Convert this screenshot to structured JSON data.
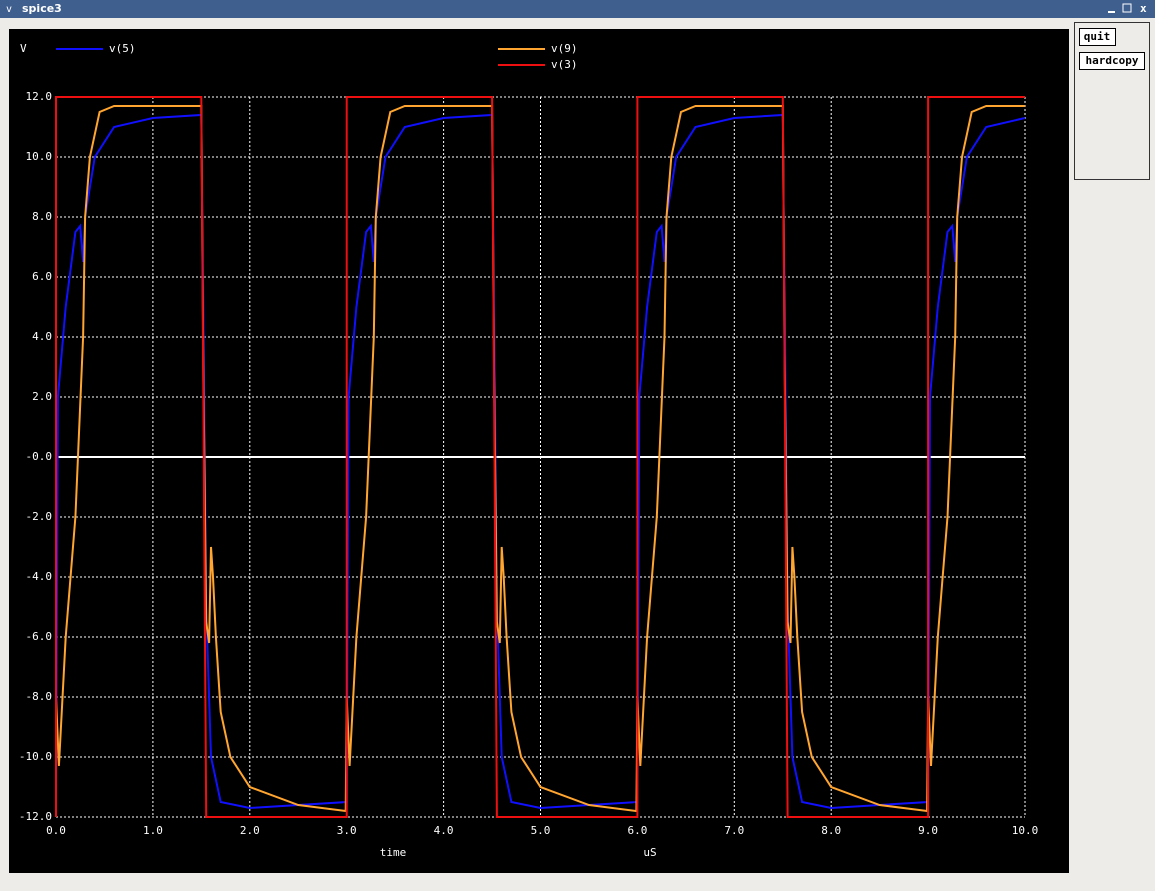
{
  "window": {
    "title": "spice3",
    "buttons": [
      "quit",
      "hardcopy"
    ]
  },
  "chart_data": {
    "type": "line",
    "ylabel": "V",
    "xlabel": "time",
    "xunit": "uS",
    "grid": true,
    "xlim": [
      0,
      10
    ],
    "ylim": [
      -12,
      12
    ],
    "xticks": [
      {
        "value": 0,
        "label": "0.0"
      },
      {
        "value": 1,
        "label": "1.0"
      },
      {
        "value": 2,
        "label": "2.0"
      },
      {
        "value": 3,
        "label": "3.0"
      },
      {
        "value": 4,
        "label": "4.0"
      },
      {
        "value": 5,
        "label": "5.0"
      },
      {
        "value": 6,
        "label": "6.0"
      },
      {
        "value": 7,
        "label": "7.0"
      },
      {
        "value": 8,
        "label": "8.0"
      },
      {
        "value": 9,
        "label": "9.0"
      },
      {
        "value": 10,
        "label": "10.0"
      }
    ],
    "yticks": [
      {
        "value": -12,
        "label": "-12.0"
      },
      {
        "value": -10,
        "label": "-10.0"
      },
      {
        "value": -8,
        "label": "-8.0"
      },
      {
        "value": -6,
        "label": "-6.0"
      },
      {
        "value": -4,
        "label": "-4.0"
      },
      {
        "value": -2,
        "label": "-2.0"
      },
      {
        "value": 0,
        "label": "-0.0"
      },
      {
        "value": 2,
        "label": "2.0"
      },
      {
        "value": 4,
        "label": "4.0"
      },
      {
        "value": 6,
        "label": "6.0"
      },
      {
        "value": 8,
        "label": "8.0"
      },
      {
        "value": 10,
        "label": "10.0"
      },
      {
        "value": 12,
        "label": "12.0"
      }
    ],
    "series": [
      {
        "name": "v(5)",
        "color": "#1010ff",
        "x": [
          0,
          0.02,
          0.1,
          0.2,
          0.25,
          0.28,
          0.3,
          0.4,
          0.6,
          1.0,
          1.5,
          1.52,
          1.55,
          1.6,
          1.7,
          2.0,
          3,
          3.02,
          3.1,
          3.2,
          3.25,
          3.28,
          3.3,
          3.4,
          3.6,
          4.0,
          4.5,
          4.52,
          4.55,
          4.6,
          4.7,
          5.0,
          6,
          6.02,
          6.1,
          6.2,
          6.25,
          6.28,
          6.3,
          6.4,
          6.6,
          7.0,
          7.5,
          7.52,
          7.55,
          7.6,
          7.7,
          8.0,
          9,
          9.02,
          9.1,
          9.2,
          9.25,
          9.28,
          9.3,
          9.4,
          9.6,
          10.0
        ],
        "values": [
          -11.5,
          2,
          5,
          7.5,
          7.7,
          6.5,
          8,
          10,
          11,
          11.3,
          11.4,
          5,
          -5,
          -10,
          -11.5,
          -11.7,
          -11.5,
          2,
          5,
          7.5,
          7.7,
          6.5,
          8,
          10,
          11,
          11.3,
          11.4,
          5,
          -5,
          -10,
          -11.5,
          -11.7,
          -11.5,
          2,
          5,
          7.5,
          7.7,
          6.5,
          8,
          10,
          11,
          11.3,
          11.4,
          5,
          -5,
          -10,
          -11.5,
          -11.7,
          -11.5,
          2,
          5,
          7.5,
          7.7,
          6.5,
          8,
          10,
          11,
          11.3
        ]
      },
      {
        "name": "v(9)",
        "color": "#ffa530",
        "x": [
          0,
          0.03,
          0.1,
          0.2,
          0.28,
          0.3,
          0.35,
          0.45,
          0.6,
          1.5,
          1.52,
          1.55,
          1.58,
          1.6,
          1.62,
          1.65,
          1.7,
          1.8,
          2.0,
          2.5,
          2.99,
          3,
          3.03,
          3.1,
          3.2,
          3.28,
          3.3,
          3.35,
          3.45,
          3.6,
          4.5,
          4.52,
          4.55,
          4.58,
          4.6,
          4.62,
          4.65,
          4.7,
          4.8,
          5.0,
          5.5,
          5.99,
          6,
          6.03,
          6.1,
          6.2,
          6.28,
          6.3,
          6.35,
          6.45,
          6.6,
          7.5,
          7.52,
          7.55,
          7.58,
          7.6,
          7.62,
          7.65,
          7.7,
          7.8,
          8.0,
          8.5,
          8.99,
          9,
          9.03,
          9.1,
          9.2,
          9.28,
          9.3,
          9.35,
          9.45,
          9.6,
          10.0
        ],
        "values": [
          -8,
          -10.3,
          -6,
          -2,
          4,
          8,
          10,
          11.5,
          11.7,
          11.7,
          3,
          -5.5,
          -6.2,
          -3,
          -4,
          -6,
          -8.5,
          -10,
          -11,
          -11.6,
          -11.8,
          -8,
          -10.3,
          -6,
          -2,
          4,
          8,
          10,
          11.5,
          11.7,
          11.7,
          3,
          -5.5,
          -6.2,
          -3,
          -4,
          -6,
          -8.5,
          -10,
          -11,
          -11.6,
          -11.8,
          -8,
          -10.3,
          -6,
          -2,
          4,
          8,
          10,
          11.5,
          11.7,
          11.7,
          3,
          -5.5,
          -6.2,
          -3,
          -4,
          -6,
          -8.5,
          -10,
          -11,
          -11.6,
          -11.8,
          -8,
          -10.3,
          -6,
          -2,
          4,
          8,
          10,
          11.5,
          11.7,
          11.7
        ]
      },
      {
        "name": "v(3)",
        "color": "#ee1010",
        "x": [
          0,
          0,
          1.5,
          1.55,
          3,
          3,
          4.5,
          4.55,
          6,
          6,
          7.5,
          7.55,
          9,
          9,
          10
        ],
        "values": [
          -12,
          12,
          12,
          -12,
          -12,
          12,
          12,
          -12,
          -12,
          12,
          12,
          -12,
          -12,
          12,
          12
        ]
      }
    ]
  }
}
